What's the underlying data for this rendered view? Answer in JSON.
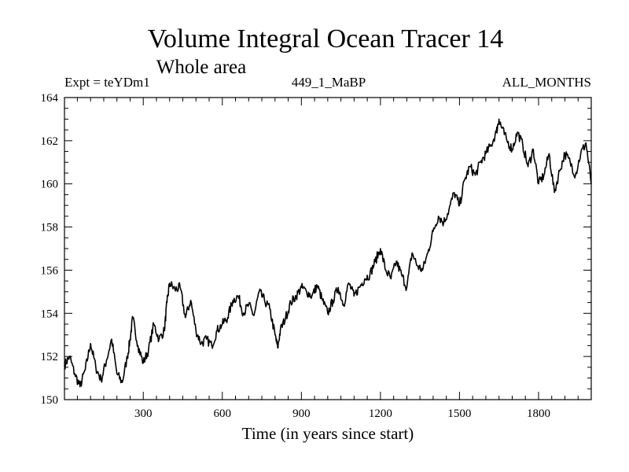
{
  "chart_data": {
    "type": "line",
    "title": "Volume Integral Ocean Tracer 14",
    "subtitle": "Whole area",
    "expt_label": "Expt = teYDm1",
    "run_label": "449_1_MaBP",
    "months_label": "ALL_MONTHS",
    "xlabel": "Time (in years since start)",
    "ylabel": "",
    "xlim": [
      1,
      2000
    ],
    "ylim": [
      150,
      164
    ],
    "xticks": [
      300,
      600,
      900,
      1200,
      1500,
      1800
    ],
    "yticks": [
      150,
      152,
      154,
      156,
      158,
      160,
      162,
      164
    ],
    "series": [
      {
        "name": "Volume Integral Ocean Tracer 14",
        "x": [
          1,
          20,
          40,
          60,
          80,
          100,
          120,
          140,
          160,
          180,
          200,
          220,
          240,
          250,
          260,
          280,
          300,
          320,
          340,
          360,
          380,
          390,
          400,
          420,
          440,
          460,
          480,
          500,
          520,
          540,
          560,
          580,
          600,
          620,
          640,
          660,
          680,
          700,
          720,
          740,
          760,
          780,
          800,
          810,
          820,
          840,
          860,
          880,
          900,
          920,
          940,
          960,
          980,
          1000,
          1020,
          1040,
          1060,
          1080,
          1100,
          1120,
          1140,
          1160,
          1180,
          1200,
          1220,
          1240,
          1260,
          1280,
          1300,
          1320,
          1340,
          1360,
          1380,
          1400,
          1420,
          1440,
          1460,
          1480,
          1500,
          1520,
          1540,
          1560,
          1580,
          1600,
          1620,
          1640,
          1650,
          1660,
          1680,
          1700,
          1720,
          1740,
          1760,
          1780,
          1800,
          1820,
          1840,
          1860,
          1880,
          1900,
          1920,
          1940,
          1960,
          1980,
          2000
        ],
        "y": [
          151.6,
          152.0,
          151.2,
          150.6,
          151.4,
          152.6,
          151.5,
          150.9,
          151.8,
          152.8,
          151.2,
          150.8,
          152.0,
          152.8,
          153.8,
          152.5,
          151.7,
          152.3,
          153.5,
          152.8,
          153.2,
          154.5,
          155.4,
          155.1,
          155.2,
          153.8,
          154.6,
          153.2,
          152.6,
          152.8,
          152.5,
          153.2,
          153.5,
          153.8,
          154.6,
          154.8,
          154.0,
          154.4,
          153.9,
          155.0,
          154.6,
          154.2,
          153.0,
          152.4,
          153.2,
          153.8,
          154.5,
          154.8,
          155.2,
          155.0,
          154.8,
          155.3,
          154.6,
          154.0,
          154.6,
          155.2,
          154.4,
          155.4,
          154.8,
          155.2,
          155.6,
          155.8,
          156.4,
          157.0,
          156.0,
          155.6,
          156.4,
          155.8,
          155.2,
          156.8,
          156.2,
          156.0,
          156.8,
          157.8,
          158.5,
          158.2,
          158.8,
          159.6,
          159.0,
          160.2,
          160.8,
          160.4,
          161.0,
          161.4,
          161.8,
          162.4,
          163.0,
          162.6,
          162.0,
          161.6,
          162.4,
          161.8,
          160.8,
          161.6,
          160.0,
          160.4,
          161.4,
          159.6,
          160.6,
          161.4,
          161.0,
          160.4,
          161.4,
          161.9,
          160.0
        ]
      }
    ]
  }
}
